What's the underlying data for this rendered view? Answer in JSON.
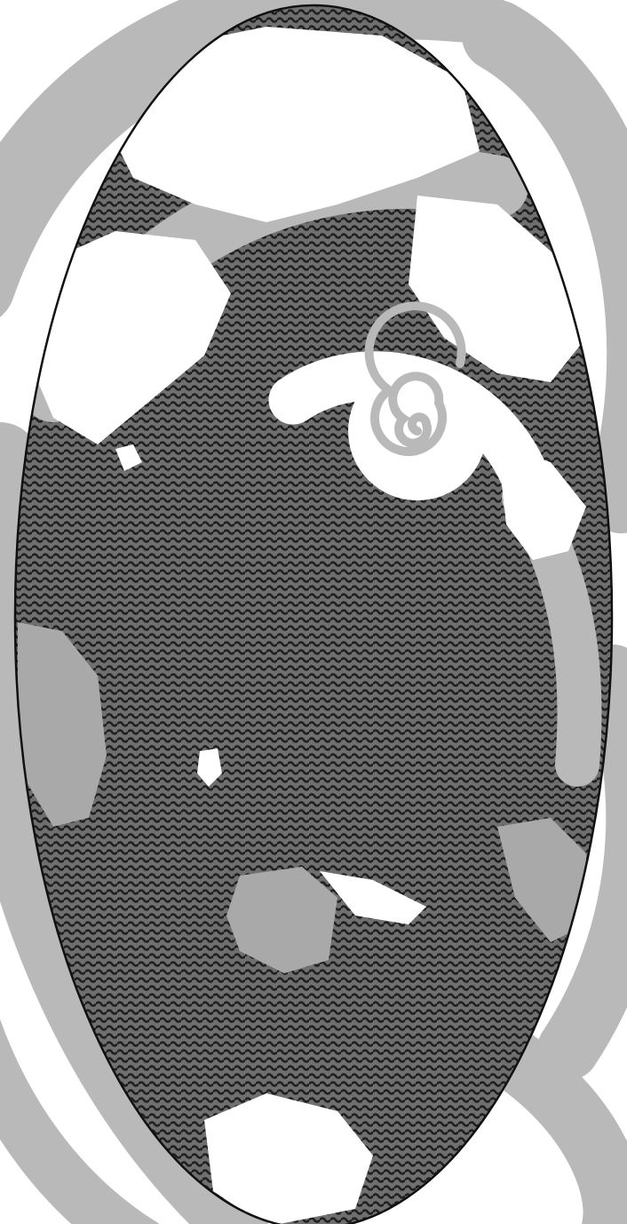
{
  "illustration": {
    "subject": "ocean-globe-illustration",
    "colors": {
      "paper": "#ffffff",
      "swirl": "#b9b9b9",
      "ocean_wave": "#2a2a2a",
      "ocean_base": "#7a7a7a",
      "land": "#ffffff",
      "land_gray": "#a9a9a9",
      "outline": "#111111"
    },
    "icons": [
      "spiral-icon",
      "wave-pattern-icon"
    ]
  }
}
